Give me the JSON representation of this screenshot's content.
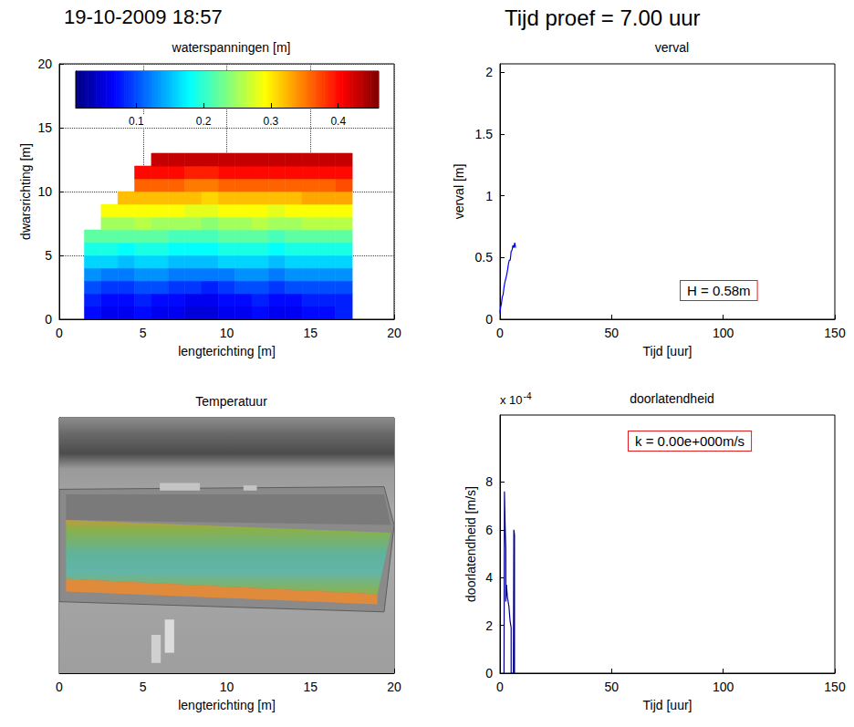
{
  "header": {
    "timestamp": "19-10-2009 18:57",
    "test_time": "Tijd proef = 7.00 uur"
  },
  "chart_data": [
    {
      "type": "heatmap",
      "title": "waterspanningen [m]",
      "xlabel": "lengterichting [m]",
      "ylabel": "dwarsrichting [m]",
      "x": [
        2,
        3,
        4,
        5,
        6,
        7,
        8,
        9,
        10,
        11,
        12,
        13,
        14,
        15,
        16,
        17
      ],
      "y": [
        0.5,
        1.5,
        2.5,
        3.5,
        4.5,
        5.5,
        6.5,
        7.5,
        8.5,
        9.5,
        10.5,
        11.5,
        12.5
      ],
      "values": [
        [
          0.07,
          0.06,
          0.06,
          0.07,
          0.06,
          0.06,
          0.05,
          0.05,
          0.06,
          0.06,
          0.07,
          0.06,
          0.06,
          0.07,
          0.07,
          0.08
        ],
        [
          0.08,
          0.07,
          0.07,
          0.08,
          0.07,
          0.07,
          0.06,
          0.06,
          0.07,
          0.07,
          0.08,
          0.07,
          0.07,
          0.08,
          0.08,
          0.08
        ],
        [
          0.1,
          0.09,
          0.09,
          0.1,
          0.1,
          0.09,
          0.09,
          0.08,
          0.09,
          0.1,
          0.1,
          0.09,
          0.1,
          0.1,
          0.1,
          0.1
        ],
        [
          0.13,
          0.12,
          0.12,
          0.13,
          0.13,
          0.12,
          0.12,
          0.12,
          0.12,
          0.13,
          0.13,
          0.12,
          0.13,
          0.13,
          0.13,
          0.13
        ],
        [
          0.16,
          0.16,
          0.15,
          0.16,
          0.16,
          0.15,
          0.15,
          0.15,
          0.16,
          0.16,
          0.16,
          0.15,
          0.16,
          0.16,
          0.16,
          0.16
        ],
        [
          0.19,
          0.19,
          0.18,
          0.19,
          0.19,
          0.18,
          0.18,
          0.18,
          0.19,
          0.19,
          0.19,
          0.18,
          0.19,
          0.19,
          0.19,
          0.19
        ],
        [
          0.22,
          0.22,
          0.22,
          0.22,
          0.22,
          0.21,
          0.21,
          0.21,
          0.22,
          0.22,
          0.22,
          0.21,
          0.22,
          0.22,
          0.22,
          0.22
        ],
        [
          null,
          0.25,
          0.25,
          0.26,
          0.25,
          0.25,
          0.25,
          0.24,
          0.25,
          0.25,
          0.26,
          0.25,
          0.25,
          0.26,
          0.26,
          0.26
        ],
        [
          null,
          0.29,
          0.29,
          0.29,
          0.29,
          0.29,
          0.28,
          0.28,
          0.29,
          0.29,
          0.29,
          0.28,
          0.29,
          0.29,
          0.29,
          0.29
        ],
        [
          null,
          null,
          0.32,
          0.32,
          0.32,
          0.32,
          0.32,
          0.31,
          0.32,
          0.32,
          0.32,
          0.32,
          0.32,
          0.33,
          0.33,
          0.33
        ],
        [
          null,
          null,
          null,
          0.36,
          0.36,
          0.36,
          0.35,
          0.35,
          0.36,
          0.36,
          0.36,
          0.36,
          0.36,
          0.36,
          0.36,
          0.37
        ],
        [
          null,
          null,
          null,
          0.4,
          0.4,
          0.4,
          0.39,
          0.39,
          0.4,
          0.4,
          0.4,
          0.4,
          0.4,
          0.4,
          0.4,
          0.4
        ],
        [
          null,
          null,
          null,
          null,
          0.43,
          0.43,
          0.43,
          0.43,
          0.43,
          0.43,
          0.43,
          0.43,
          0.43,
          0.43,
          0.43,
          0.43
        ]
      ],
      "xlim": [
        0,
        20
      ],
      "xticks": [
        0,
        5,
        10,
        15,
        20
      ],
      "ylim": [
        0,
        20
      ],
      "yticks": [
        0,
        5,
        10,
        15,
        20
      ],
      "grid": true,
      "colorbar": {
        "range": [
          0.01,
          0.46
        ],
        "ticks": [
          0.1,
          0.2,
          0.3,
          0.4
        ]
      }
    },
    {
      "type": "line",
      "title": "verval",
      "xlabel": "Tijd [uur]",
      "ylabel": "verval [m]",
      "x": [
        0,
        0.3,
        0.6,
        1,
        1.4,
        1.8,
        2.2,
        2.6,
        3,
        3.4,
        3.8,
        4.2,
        4.6,
        5,
        5.4,
        5.8,
        6.2,
        6.6,
        7
      ],
      "values": [
        0.05,
        0.1,
        0.12,
        0.18,
        0.2,
        0.26,
        0.3,
        0.33,
        0.36,
        0.4,
        0.45,
        0.48,
        0.48,
        0.55,
        0.56,
        0.6,
        0.58,
        0.62,
        0.58
      ],
      "color": "#0000ff",
      "xlim": [
        0,
        150
      ],
      "xticks": [
        0,
        50,
        100,
        150
      ],
      "ylim": [
        0,
        2.07
      ],
      "yticks": [
        0,
        0.5,
        1,
        1.5,
        2
      ],
      "annotation": "H = 0.58m",
      "grid": false
    },
    {
      "type": "image",
      "title": "Temperatuur",
      "xlabel": "lengterichting [m]",
      "xlim": [
        0,
        20
      ],
      "xticks": [
        0,
        5,
        10,
        15,
        20
      ],
      "tick_labels": "x"
    },
    {
      "type": "line",
      "title": "doorlatendheid",
      "xlabel": "Tijd [uur]",
      "ylabel": "doorlatendheid [m/s]",
      "x": [
        1.8,
        2.0,
        2.3,
        2.6,
        2.6,
        2.9,
        3.3,
        4.0,
        4.5,
        5.0,
        5.0,
        6.0,
        6.2,
        6.5,
        6.5
      ],
      "values": [
        0,
        0.00076,
        0.00062,
        0.00052,
        0.0003,
        0.00037,
        0.00032,
        0.00028,
        0.00022,
        0.00019,
        0,
        0,
        0.0006,
        0.00058,
        0
      ],
      "color": "#00008b",
      "xlim": [
        0,
        150
      ],
      "xticks": [
        0,
        50,
        100,
        150
      ],
      "ylim": [
        0,
        0.00108
      ],
      "yticks": [
        0,
        {
          "value": 0.0002,
          "label": "2"
        },
        {
          "value": 0.0004,
          "label": "4"
        },
        {
          "value": 0.0006,
          "label": "6"
        },
        {
          "value": 0.0008,
          "label": "8"
        }
      ],
      "y_multiplier": {
        "base": "x 10",
        "exponent": "-4"
      },
      "annotation": "k = 0.00e+000m/s",
      "grid": false
    }
  ]
}
